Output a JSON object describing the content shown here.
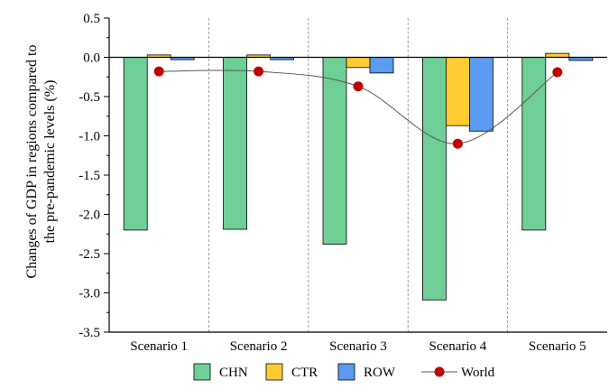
{
  "chart_data": {
    "type": "bar",
    "categories": [
      "Scenario 1",
      "Scenario 2",
      "Scenario 3",
      "Scenario 4",
      "Scenario 5"
    ],
    "series": [
      {
        "name": "CHN",
        "color": "#6fcf97",
        "values": [
          -2.2,
          -2.19,
          -2.38,
          -3.09,
          -2.2
        ]
      },
      {
        "name": "CTR",
        "color": "#ffcc33",
        "values": [
          0.03,
          0.03,
          -0.13,
          -0.87,
          0.05
        ]
      },
      {
        "name": "ROW",
        "color": "#5b9bf0",
        "values": [
          -0.03,
          -0.03,
          -0.2,
          -0.94,
          -0.04
        ]
      }
    ],
    "line_series": {
      "name": "World",
      "type": "line",
      "color": "#c00000",
      "values": [
        -0.18,
        -0.18,
        -0.37,
        -1.1,
        -0.19
      ]
    },
    "ylabel_lines": [
      "Changes of GDP in regions compared to",
      "the pre-pandemic levels (%)"
    ],
    "ylim": [
      -3.5,
      0.5
    ],
    "yticks": [
      0.5,
      0.0,
      -0.5,
      -1.0,
      -1.5,
      -2.0,
      -2.5,
      -3.0,
      -3.5
    ],
    "ytick_labels": [
      "0.5",
      "0.0",
      "-0.5",
      "-1.0",
      "-1.5",
      "-2.0",
      "-2.5",
      "-3.0",
      "-3.5"
    ],
    "legend_position": "bottom",
    "grid": false
  }
}
